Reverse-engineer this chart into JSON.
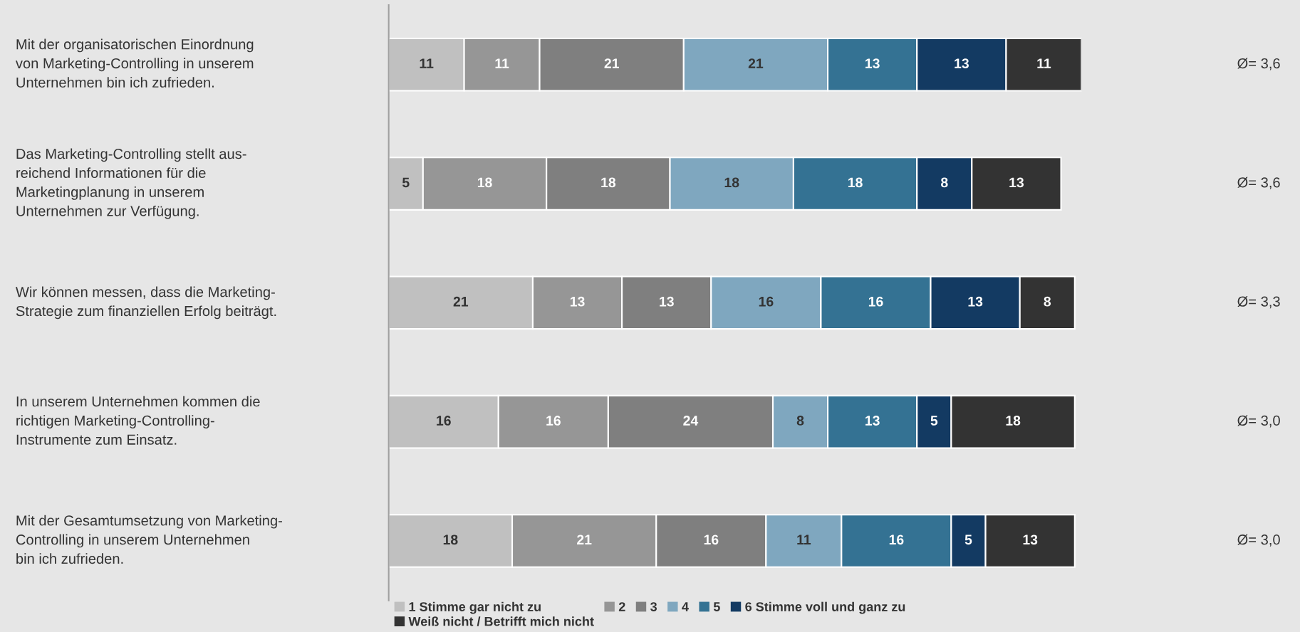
{
  "chart_data": {
    "type": "bar",
    "orientation": "horizontal",
    "stacked": true,
    "data_labels": true,
    "legend": "bottom",
    "categories": [
      "Mit der organisatorischen Einordnung\nvon Marketing-Controlling in unserem\nUnternehmen bin ich zufrieden.",
      "Das Marketing-Controlling stellt aus-\nreichend Informationen für die\nMarketingplanung in unserem\nUnternehmen zur Verfügung.",
      "Wir können messen, dass die Marketing-\nStrategie zum finanziellen Erfolg beiträgt.",
      "In unserem Unternehmen kommen die\nrichtigen Marketing-Controlling-\nInstrumente zum Einsatz.",
      "Mit der Gesamtumsetzung von Marketing-\nControlling in unserem Unternehmen\nbin ich zufrieden."
    ],
    "series": [
      {
        "name": "1 Stimme gar nicht zu",
        "color": "#c0c0c0",
        "values": [
          11,
          5,
          21,
          16,
          18
        ]
      },
      {
        "name": "2",
        "color": "#969696",
        "values": [
          11,
          18,
          13,
          16,
          21
        ]
      },
      {
        "name": "3",
        "color": "#7f7f7f",
        "values": [
          21,
          18,
          13,
          24,
          16
        ]
      },
      {
        "name": "4",
        "color": "#7fa7bf",
        "values": [
          21,
          18,
          16,
          8,
          11
        ]
      },
      {
        "name": "5",
        "color": "#347293",
        "values": [
          13,
          18,
          16,
          13,
          16
        ]
      },
      {
        "name": "6 Stimme voll und ganz zu",
        "color": "#133a62",
        "values": [
          13,
          8,
          13,
          5,
          5
        ]
      },
      {
        "name": "Weiß nicht / Betrifft mich nicht",
        "color": "#333333",
        "values": [
          11,
          13,
          8,
          18,
          13
        ]
      }
    ],
    "annotations": [
      "Ø= 3,6",
      "Ø= 3,6",
      "Ø= 3,3",
      "Ø= 3,0",
      "Ø= 3,0"
    ]
  }
}
